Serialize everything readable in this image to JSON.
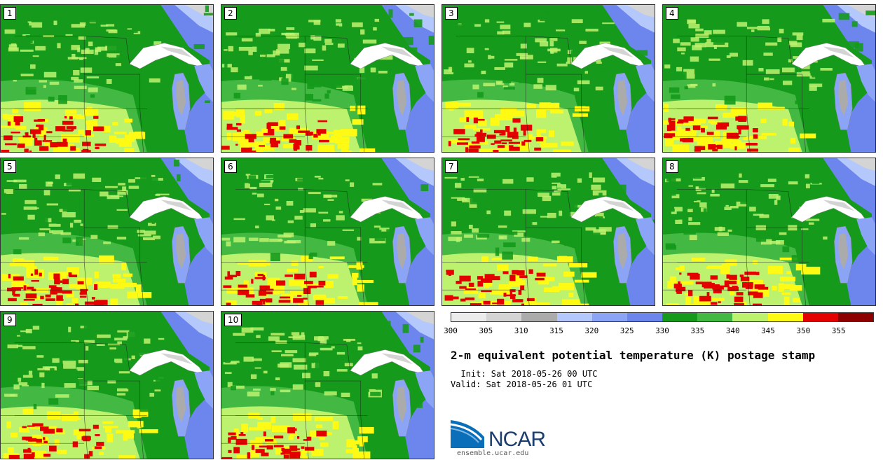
{
  "stamps": [
    {
      "label": "1",
      "hot": 1.0
    },
    {
      "label": "2",
      "hot": 0.8
    },
    {
      "label": "3",
      "hot": 0.9
    },
    {
      "label": "4",
      "hot": 0.85
    },
    {
      "label": "5",
      "hot": 1.0
    },
    {
      "label": "6",
      "hot": 0.85
    },
    {
      "label": "7",
      "hot": 0.9
    },
    {
      "label": "8",
      "hot": 0.9
    },
    {
      "label": "9",
      "hot": 0.7
    },
    {
      "label": "10",
      "hot": 0.8
    }
  ],
  "colorbar": {
    "colors": [
      "#ececec",
      "#d4d4d4",
      "#ababab",
      "#b4c8fb",
      "#8ca4f5",
      "#6d86ee",
      "#159a1c",
      "#43b943",
      "#bdf26e",
      "#fffa14",
      "#e50000",
      "#8c0000"
    ],
    "ticks": [
      "300",
      "305",
      "310",
      "315",
      "320",
      "325",
      "330",
      "335",
      "340",
      "345",
      "350",
      "355"
    ]
  },
  "title": "2-m equivalent potential temperature (K) postage stamp",
  "init_label": "Init: Sat 2018-05-26 00 UTC",
  "valid_label": "Valid: Sat 2018-05-26 01 UTC",
  "logo": {
    "text": "NCAR",
    "url": "ensemble.ucar.edu"
  }
}
